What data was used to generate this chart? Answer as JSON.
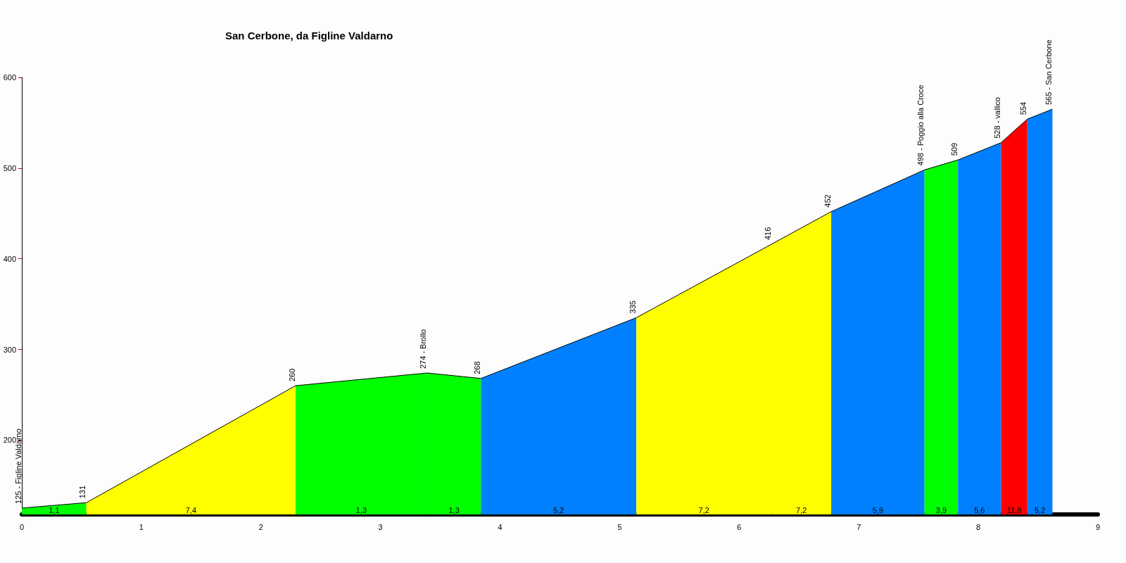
{
  "chart_data": {
    "type": "area",
    "title": "San Cerbone, da Figline Valdarno",
    "xlim": [
      0,
      9
    ],
    "xticks": [
      0,
      1,
      2,
      3,
      4,
      5,
      6,
      7,
      8,
      9
    ],
    "ylim": [
      118,
      600
    ],
    "yticks": [
      200,
      300,
      400,
      500,
      600
    ],
    "grid": false,
    "legend": false,
    "series": [
      {
        "name": "1,1",
        "color": "#00ff00",
        "x": [
          0,
          0.54
        ],
        "values": [
          125,
          131
        ]
      },
      {
        "name": "7,4",
        "color": "#ffff00",
        "x": [
          0.54,
          2.29
        ],
        "values": [
          131,
          260
        ]
      },
      {
        "name": "1,3",
        "color": "#00ff00",
        "x": [
          2.29,
          3.39
        ],
        "values": [
          260,
          274
        ]
      },
      {
        "name": "1,3",
        "color": "#00ff00",
        "x": [
          3.39,
          3.84
        ],
        "values": [
          274,
          268
        ]
      },
      {
        "name": "5,2",
        "color": "#0080ff",
        "x": [
          3.84,
          5.14
        ],
        "values": [
          268,
          335
        ]
      },
      {
        "name": "7,2",
        "color": "#ffff00",
        "x": [
          5.14,
          6.27
        ],
        "values": [
          335,
          416
        ]
      },
      {
        "name": "7,2",
        "color": "#ffff00",
        "x": [
          6.27,
          6.77
        ],
        "values": [
          416,
          452
        ]
      },
      {
        "name": "5,9",
        "color": "#0080ff",
        "x": [
          6.77,
          7.55
        ],
        "values": [
          452,
          498
        ]
      },
      {
        "name": "3,9",
        "color": "#00ff00",
        "x": [
          7.55,
          7.83
        ],
        "values": [
          498,
          509
        ]
      },
      {
        "name": "5,6",
        "color": "#0080ff",
        "x": [
          7.83,
          8.19
        ],
        "values": [
          509,
          528
        ]
      },
      {
        "name": "11,8",
        "color": "#ff0000",
        "x": [
          8.19,
          8.41
        ],
        "values": [
          528,
          554
        ]
      },
      {
        "name": "5,2",
        "color": "#0080ff",
        "x": [
          8.41,
          8.62
        ],
        "values": [
          554,
          565
        ]
      }
    ],
    "annotations": [
      {
        "text": "125 - Figline Valdarno",
        "x": 0,
        "y": 125
      },
      {
        "text": "131",
        "x": 0.54,
        "y": 131
      },
      {
        "text": "260",
        "x": 2.29,
        "y": 260
      },
      {
        "text": "274 - Brollo",
        "x": 3.39,
        "y": 274
      },
      {
        "text": "268",
        "x": 3.84,
        "y": 268
      },
      {
        "text": "335",
        "x": 5.14,
        "y": 335
      },
      {
        "text": "416",
        "x": 6.27,
        "y": 416
      },
      {
        "text": "452",
        "x": 6.77,
        "y": 452
      },
      {
        "text": "498 - Poggio alla Croce",
        "x": 7.55,
        "y": 498
      },
      {
        "text": "509",
        "x": 7.83,
        "y": 509
      },
      {
        "text": "528 - vallico",
        "x": 8.19,
        "y": 528
      },
      {
        "text": "554",
        "x": 8.41,
        "y": 554
      },
      {
        "text": "565 - San Cerbone",
        "x": 8.62,
        "y": 565
      }
    ]
  }
}
